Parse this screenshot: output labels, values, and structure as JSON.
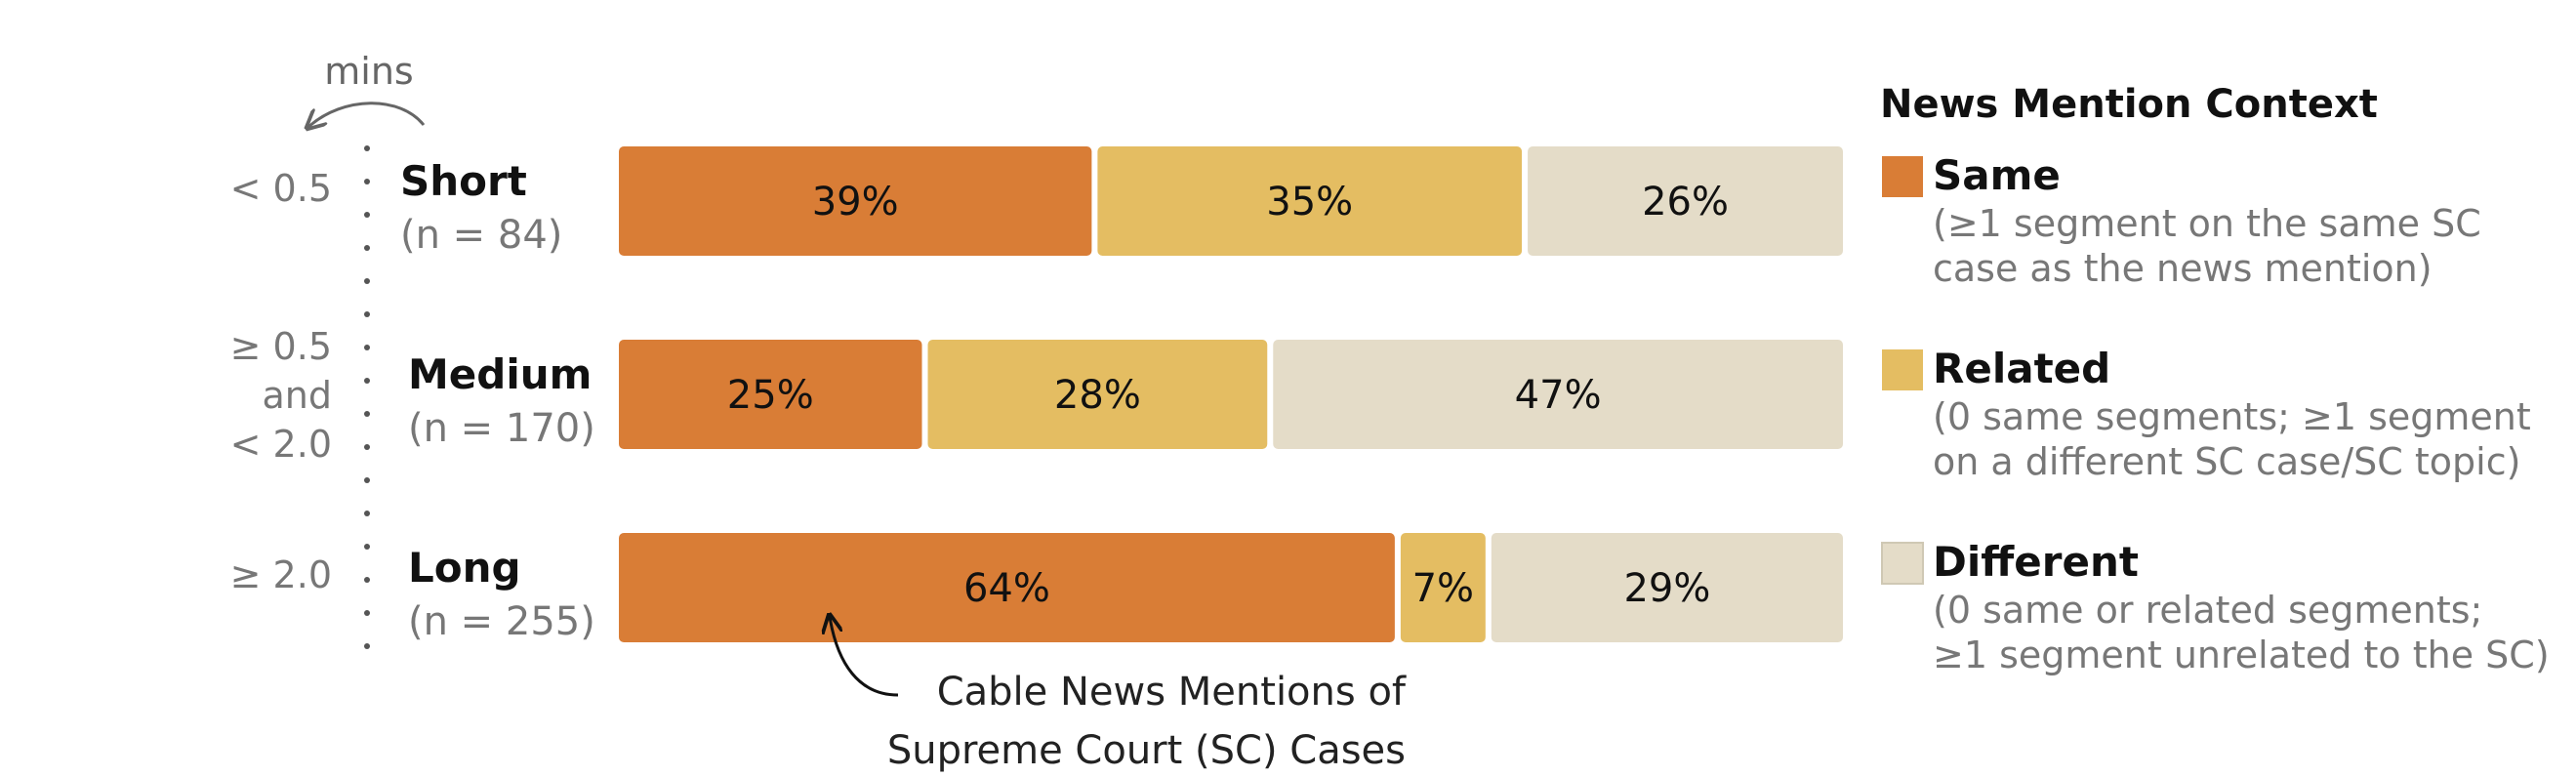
{
  "chart_data": {
    "type": "bar",
    "stacked": true,
    "orientation": "horizontal",
    "categories": [
      {
        "name": "Short",
        "n_label": "(n = 84)",
        "range_lines": [
          "< 0.5"
        ]
      },
      {
        "name": "Medium",
        "n_label": "(n = 170)",
        "range_lines": [
          "≥ 0.5",
          "and",
          "< 2.0"
        ]
      },
      {
        "name": "Long",
        "n_label": "(n = 255)",
        "range_lines": [
          "≥ 2.0"
        ]
      }
    ],
    "series": [
      {
        "name": "Same",
        "values": [
          39,
          25,
          64
        ],
        "color": "#d97d36"
      },
      {
        "name": "Related",
        "values": [
          35,
          28,
          7
        ],
        "color": "#e4bd62"
      },
      {
        "name": "Different",
        "values": [
          26,
          47,
          29
        ],
        "color": "#e4dcc8"
      }
    ],
    "units_label": "mins",
    "annotation": "Cable News Mentions of Supreme Court (SC) Cases",
    "annotation_lines": [
      "Cable News Mentions of",
      "Supreme Court (SC) Cases"
    ],
    "legend": {
      "title": "News Mention Context",
      "placement": "right",
      "items": [
        {
          "label": "Same",
          "desc": [
            "(≥1 segment on the same SC",
            "case as the news mention)"
          ]
        },
        {
          "label": "Related",
          "desc": [
            "(0 same segments; ≥1 segment",
            "on a different SC case/SC topic)"
          ]
        },
        {
          "label": "Different",
          "desc": [
            "(0 same or related segments;",
            "≥1 segment unrelated to the SC)"
          ]
        }
      ]
    }
  }
}
